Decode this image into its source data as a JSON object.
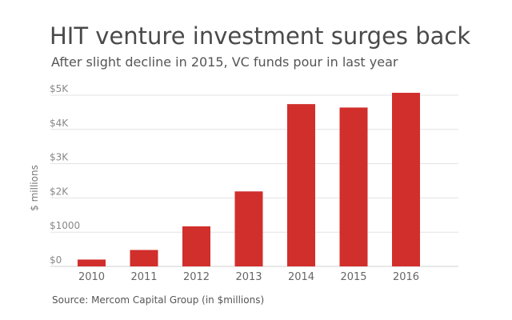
{
  "chart_data": {
    "type": "bar",
    "title": "HIT venture investment surges back",
    "subtitle": "After slight decline in 2015, VC funds pour in last year",
    "xlabel": "",
    "ylabel": "$ millions",
    "categories": [
      "2010",
      "2011",
      "2012",
      "2013",
      "2014",
      "2015",
      "2016"
    ],
    "values": [
      200,
      480,
      1170,
      2190,
      4740,
      4640,
      5070
    ],
    "ylim": [
      0,
      5000
    ],
    "yticks": [
      0,
      1000,
      2000,
      3000,
      4000,
      5000
    ],
    "ytick_labels": [
      "$0",
      "$1000",
      "$2K",
      "$3K",
      "$4K",
      "$5K"
    ],
    "grid": true,
    "legend": "none",
    "bar_color": "#d12f2c",
    "source": "Source: Mercom Capital Group (in $millions)"
  }
}
